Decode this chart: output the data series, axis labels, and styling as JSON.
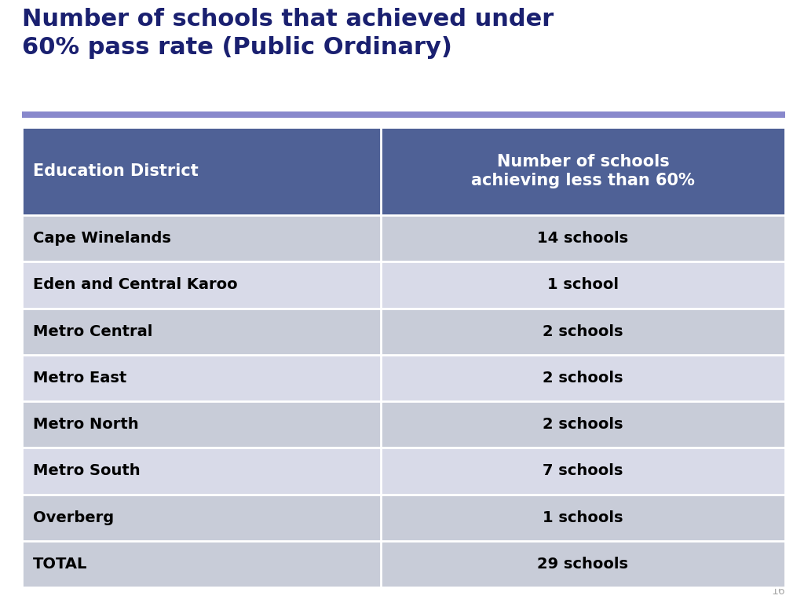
{
  "title_line1": "Number of schools that achieved under",
  "title_line2": "60% pass rate (Public Ordinary)",
  "title_color": "#1a2070",
  "title_fontsize": 22,
  "header": [
    "Education District",
    "Number of schools\nachieving less than 60%"
  ],
  "rows": [
    [
      "Cape Winelands",
      "14 schools"
    ],
    [
      "Eden and Central Karoo",
      "1 school"
    ],
    [
      "Metro Central",
      "2 schools"
    ],
    [
      "Metro East",
      "2 schools"
    ],
    [
      "Metro North",
      "2 schools"
    ],
    [
      "Metro South",
      "7 schools"
    ],
    [
      "Overberg",
      "1 schools"
    ],
    [
      "TOTAL",
      "29 schools"
    ]
  ],
  "header_bg_color": "#4f6196",
  "header_text_color": "#ffffff",
  "row_colors": [
    "#c8ccd8",
    "#d8dae8",
    "#c8ccd8",
    "#d8dae8",
    "#c8ccd8",
    "#d8dae8",
    "#c8ccd8",
    "#c8ccd8"
  ],
  "separator_line_color": "#8888cc",
  "background_color": "#ffffff",
  "table_text_color": "#000000",
  "page_number": "16",
  "col_split": 0.47
}
